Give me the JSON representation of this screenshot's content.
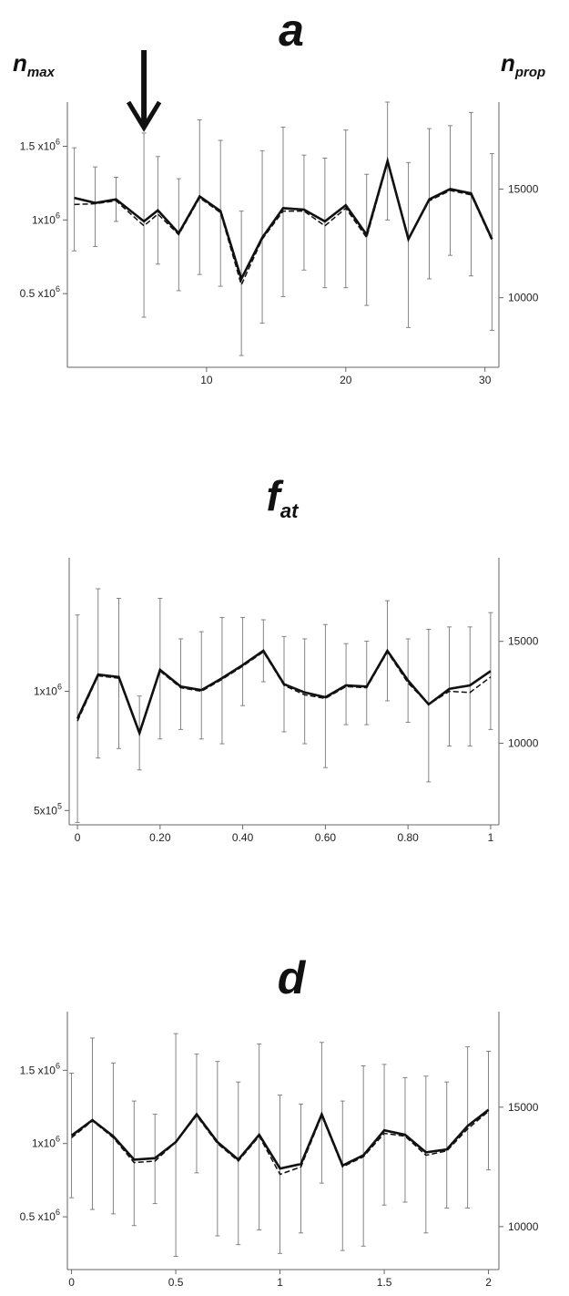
{
  "figure": {
    "left_axis_label": {
      "main": "n",
      "sub": "max"
    },
    "right_axis_label": {
      "main": "n",
      "sub": "prop"
    }
  },
  "chart_data": [
    {
      "type": "line",
      "title": {
        "main": "a",
        "sub": ""
      },
      "annotation": "down-arrow-marker at x = 5.5",
      "arrow_x": 5.5,
      "xlim": [
        0,
        31
      ],
      "ylim_left": [
        0,
        1800000
      ],
      "ylim_right": [
        6800,
        19000
      ],
      "x_ticks": [
        10,
        20,
        30
      ],
      "x_tick_labels": [
        "10",
        "20",
        "30"
      ],
      "y_left_ticks": [
        {
          "v": 500000,
          "base": "0.5 x10",
          "exp": "6"
        },
        {
          "v": 1000000,
          "base": "1x10",
          "exp": "6"
        },
        {
          "v": 1500000,
          "base": "1.5 x10",
          "exp": "6"
        }
      ],
      "y_right_ticks": [
        {
          "v": 10000,
          "label": "10000"
        },
        {
          "v": 15000,
          "label": "15000"
        }
      ],
      "x": [
        0.5,
        2,
        3.5,
        5.5,
        6.5,
        8,
        9.5,
        11,
        12.5,
        14,
        15.5,
        17,
        18.5,
        20,
        21.5,
        23,
        24.5,
        26,
        27.5,
        29,
        30.5
      ],
      "series": [
        {
          "name": "",
          "axis": "left",
          "style": "solid",
          "values": [
            1150000,
            1115000,
            1140000,
            990000,
            1065000,
            910000,
            1160000,
            1060000,
            600000,
            880000,
            1080000,
            1070000,
            990000,
            1100000,
            900000,
            1400000,
            870000,
            1140000,
            1210000,
            1180000,
            870000
          ]
        },
        {
          "name": "",
          "axis": "left",
          "style": "dashed",
          "values": [
            1105000,
            1110000,
            1130000,
            960000,
            1040000,
            900000,
            1150000,
            1050000,
            560000,
            870000,
            1060000,
            1060000,
            960000,
            1080000,
            880000,
            1390000,
            870000,
            1130000,
            1200000,
            1170000,
            860000
          ]
        }
      ],
      "error_bars": [
        {
          "low": 790000,
          "high": 1490000
        },
        {
          "low": 820000,
          "high": 1360000
        },
        {
          "low": 990000,
          "high": 1290000
        },
        {
          "low": 340000,
          "high": 1590000
        },
        {
          "low": 700000,
          "high": 1430000
        },
        {
          "low": 520000,
          "high": 1280000
        },
        {
          "low": 630000,
          "high": 1680000
        },
        {
          "low": 550000,
          "high": 1540000
        },
        {
          "low": 80000,
          "high": 1060000
        },
        {
          "low": 300000,
          "high": 1470000
        },
        {
          "low": 480000,
          "high": 1630000
        },
        {
          "low": 660000,
          "high": 1440000
        },
        {
          "low": 540000,
          "high": 1420000
        },
        {
          "low": 540000,
          "high": 1610000
        },
        {
          "low": 420000,
          "high": 1310000
        },
        {
          "low": 1000000,
          "high": 1800000
        },
        {
          "low": 270000,
          "high": 1390000
        },
        {
          "low": 600000,
          "high": 1620000
        },
        {
          "low": 760000,
          "high": 1640000
        },
        {
          "low": 620000,
          "high": 1730000
        },
        {
          "low": 250000,
          "high": 1450000
        }
      ]
    },
    {
      "type": "line",
      "title": {
        "main": "f",
        "sub": "at"
      },
      "xlim": [
        -0.02,
        1.02
      ],
      "ylim_left": [
        440000,
        1560000
      ],
      "ylim_right": [
        6000,
        19100
      ],
      "x_ticks": [
        0,
        0.2,
        0.4,
        0.6,
        0.8,
        1
      ],
      "x_tick_labels": [
        "0",
        "0.20",
        "0.40",
        "0.60",
        "0.80",
        "1"
      ],
      "y_left_ticks": [
        {
          "v": 500000,
          "base": "5x10",
          "exp": "5"
        },
        {
          "v": 1000000,
          "base": "1x10",
          "exp": "6"
        }
      ],
      "y_right_ticks": [
        {
          "v": 10000,
          "label": "10000"
        },
        {
          "v": 15000,
          "label": "15000"
        }
      ],
      "x": [
        0,
        0.05,
        0.1,
        0.15,
        0.2,
        0.25,
        0.3,
        0.35,
        0.4,
        0.45,
        0.5,
        0.55,
        0.6,
        0.65,
        0.7,
        0.75,
        0.8,
        0.85,
        0.9,
        0.95,
        1
      ],
      "series": [
        {
          "name": "",
          "axis": "left",
          "style": "solid",
          "values": [
            885000,
            1070000,
            1060000,
            825000,
            1090000,
            1020000,
            1005000,
            1055000,
            1110000,
            1170000,
            1030000,
            995000,
            975000,
            1025000,
            1020000,
            1170000,
            1045000,
            945000,
            1010000,
            1025000,
            1085000
          ]
        },
        {
          "name": "",
          "axis": "left",
          "style": "dashed",
          "values": [
            875000,
            1065000,
            1055000,
            820000,
            1085000,
            1015000,
            1000000,
            1050000,
            1105000,
            1165000,
            1025000,
            985000,
            970000,
            1020000,
            1015000,
            1165000,
            1035000,
            945000,
            1000000,
            995000,
            1060000
          ]
        }
      ],
      "error_bars": [
        {
          "low": 450000,
          "high": 1320000
        },
        {
          "low": 720000,
          "high": 1430000
        },
        {
          "low": 760000,
          "high": 1390000
        },
        {
          "low": 670000,
          "high": 980000
        },
        {
          "low": 800000,
          "high": 1390000
        },
        {
          "low": 840000,
          "high": 1220000
        },
        {
          "low": 800000,
          "high": 1250000
        },
        {
          "low": 780000,
          "high": 1310000
        },
        {
          "low": 940000,
          "high": 1310000
        },
        {
          "low": 1040000,
          "high": 1300000
        },
        {
          "low": 830000,
          "high": 1230000
        },
        {
          "low": 780000,
          "high": 1220000
        },
        {
          "low": 680000,
          "high": 1280000
        },
        {
          "low": 860000,
          "high": 1200000
        },
        {
          "low": 860000,
          "high": 1210000
        },
        {
          "low": 960000,
          "high": 1380000
        },
        {
          "low": 870000,
          "high": 1220000
        },
        {
          "low": 620000,
          "high": 1260000
        },
        {
          "low": 770000,
          "high": 1270000
        },
        {
          "low": 770000,
          "high": 1270000
        },
        {
          "low": 840000,
          "high": 1330000
        }
      ]
    },
    {
      "type": "line",
      "title": {
        "main": "d",
        "sub": ""
      },
      "xlim": [
        -0.02,
        2.05
      ],
      "ylim_left": [
        140000,
        1900000
      ],
      "ylim_right": [
        8200,
        19000
      ],
      "x_ticks": [
        0,
        0.5,
        1,
        1.5,
        2
      ],
      "x_tick_labels": [
        "0",
        "0.5",
        "1",
        "1.5",
        "2"
      ],
      "y_left_ticks": [
        {
          "v": 500000,
          "base": "0.5 x10",
          "exp": "6"
        },
        {
          "v": 1000000,
          "base": "1x10",
          "exp": "6"
        },
        {
          "v": 1500000,
          "base": "1.5 x10",
          "exp": "6"
        }
      ],
      "y_right_ticks": [
        {
          "v": 10000,
          "label": "10000"
        },
        {
          "v": 15000,
          "label": "15000"
        }
      ],
      "x": [
        0,
        0.1,
        0.2,
        0.3,
        0.4,
        0.5,
        0.6,
        0.7,
        0.8,
        0.9,
        1,
        1.1,
        1.2,
        1.3,
        1.4,
        1.5,
        1.6,
        1.7,
        1.8,
        1.9,
        2
      ],
      "series": [
        {
          "name": "",
          "axis": "left",
          "style": "solid",
          "values": [
            1055000,
            1160000,
            1050000,
            890000,
            900000,
            1010000,
            1200000,
            1010000,
            890000,
            1060000,
            830000,
            860000,
            1200000,
            850000,
            920000,
            1090000,
            1060000,
            940000,
            960000,
            1120000,
            1230000
          ]
        },
        {
          "name": "",
          "axis": "left",
          "style": "dashed",
          "values": [
            1040000,
            1155000,
            1040000,
            870000,
            880000,
            1010000,
            1190000,
            1000000,
            880000,
            1050000,
            790000,
            840000,
            1190000,
            840000,
            910000,
            1070000,
            1050000,
            920000,
            950000,
            1100000,
            1220000
          ]
        }
      ],
      "error_bars": [
        {
          "low": 630000,
          "high": 1480000
        },
        {
          "low": 550000,
          "high": 1720000
        },
        {
          "low": 520000,
          "high": 1550000
        },
        {
          "low": 440000,
          "high": 1290000
        },
        {
          "low": 590000,
          "high": 1200000
        },
        {
          "low": 230000,
          "high": 1750000
        },
        {
          "low": 800000,
          "high": 1610000
        },
        {
          "low": 370000,
          "high": 1560000
        },
        {
          "low": 310000,
          "high": 1420000
        },
        {
          "low": 410000,
          "high": 1680000
        },
        {
          "low": 250000,
          "high": 1330000
        },
        {
          "low": 390000,
          "high": 1270000
        },
        {
          "low": 730000,
          "high": 1690000
        },
        {
          "low": 270000,
          "high": 1290000
        },
        {
          "low": 300000,
          "high": 1530000
        },
        {
          "low": 580000,
          "high": 1540000
        },
        {
          "low": 600000,
          "high": 1450000
        },
        {
          "low": 390000,
          "high": 1460000
        },
        {
          "low": 560000,
          "high": 1420000
        },
        {
          "low": 560000,
          "high": 1660000
        },
        {
          "low": 820000,
          "high": 1630000
        }
      ]
    }
  ]
}
